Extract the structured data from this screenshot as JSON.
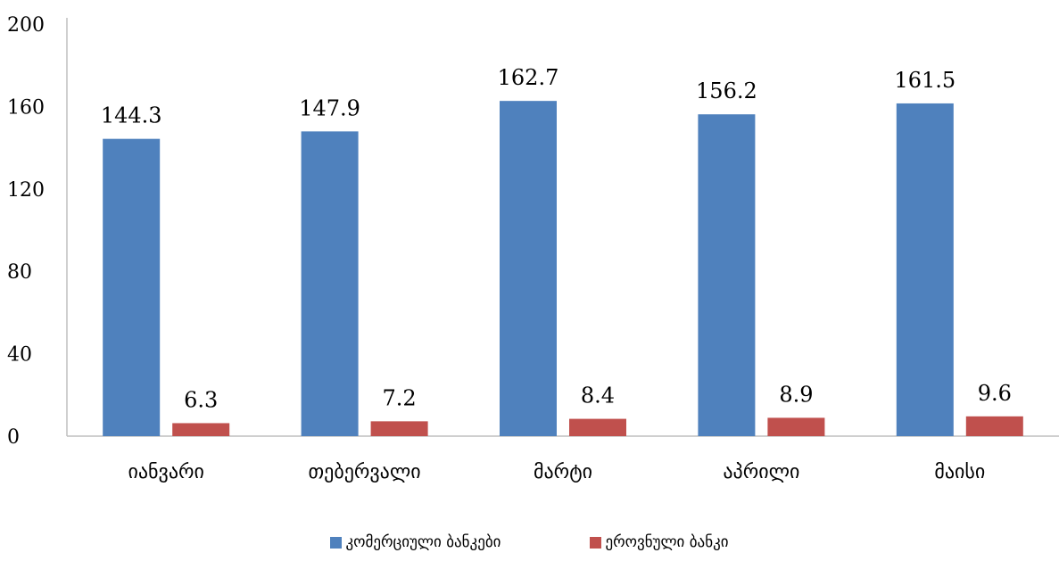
{
  "colors": {
    "series_1": "#4F81BD",
    "series_2": "#C0504D",
    "axis": "#BFBFBF"
  },
  "chart_data": {
    "type": "bar",
    "title": "",
    "xlabel": "",
    "ylabel": "",
    "ylim": [
      0,
      200
    ],
    "yticks": [
      0,
      40,
      80,
      120,
      160,
      200
    ],
    "grid": false,
    "legend": "bottom",
    "categories": [
      "იანვარი",
      "თებერვალი",
      "მარტი",
      "აპრილი",
      "მაისი"
    ],
    "series": [
      {
        "name": "კომერციული ბანკები",
        "values": [
          144.3,
          147.9,
          162.7,
          156.2,
          161.5
        ],
        "labels": [
          "144.3",
          "147.9",
          "162.7",
          "156.2",
          "161.5"
        ]
      },
      {
        "name": "ეროვნული ბანკი",
        "values": [
          6.3,
          7.2,
          8.4,
          8.9,
          9.6
        ],
        "labels": [
          "6.3",
          "7.2",
          "8.4",
          "8.9",
          "9.6"
        ]
      }
    ]
  }
}
